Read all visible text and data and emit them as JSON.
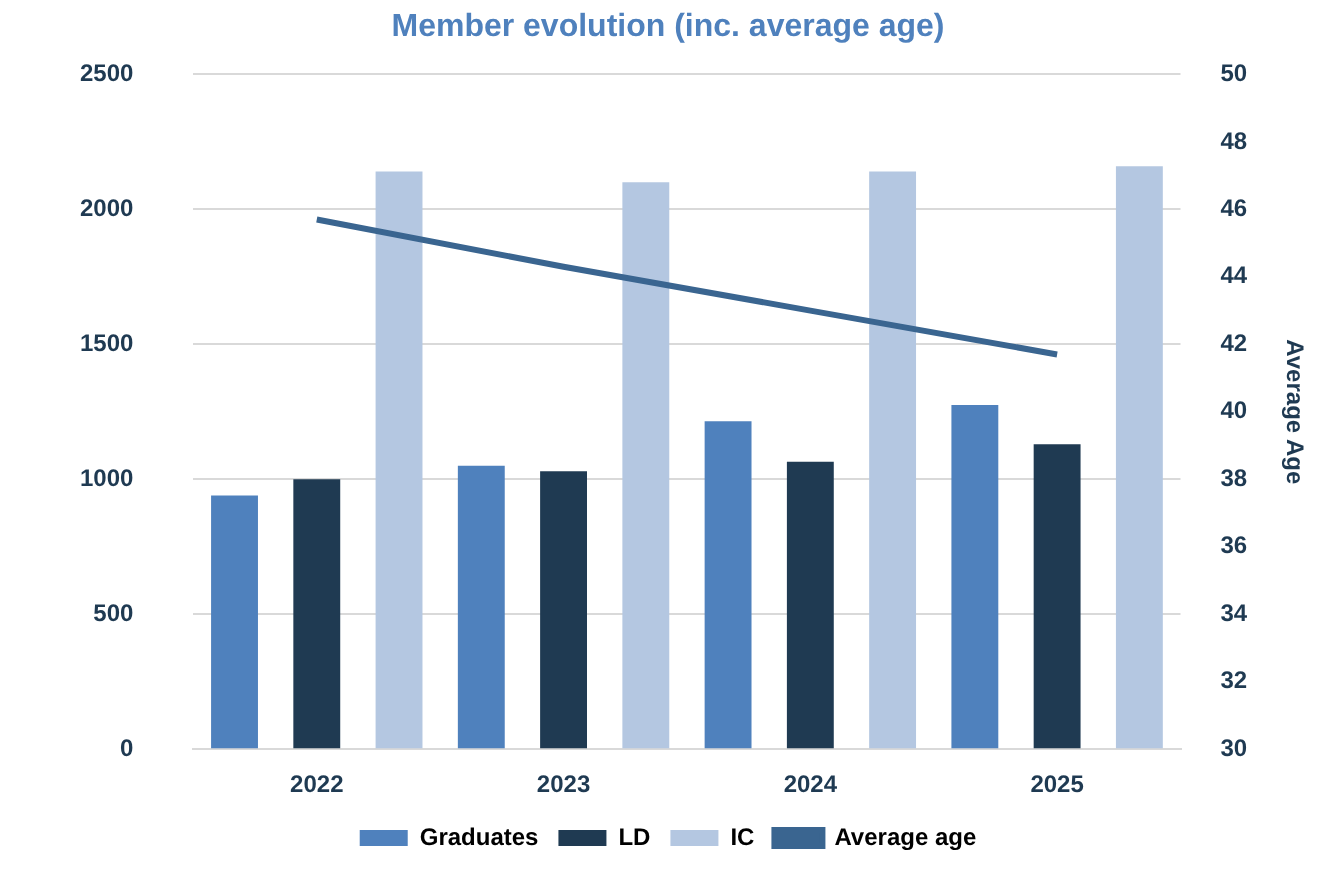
{
  "chart_data": {
    "type": "bar",
    "title": "Member evolution (inc. average age)",
    "y2label": "Average Age",
    "categories": [
      "2022",
      "2023",
      "2024",
      "2025"
    ],
    "series": [
      {
        "name": "Graduates",
        "color": "#4f81bd",
        "values": [
          940,
          1050,
          1215,
          1275
        ]
      },
      {
        "name": "LD",
        "color": "#1f3a52",
        "values": [
          1000,
          1030,
          1065,
          1130
        ]
      },
      {
        "name": "IC",
        "color": "#b4c7e1",
        "values": [
          2140,
          2100,
          2140,
          2160
        ]
      },
      {
        "name": "Average age",
        "type": "line",
        "axis": "y2",
        "color": "#3a6590",
        "values": [
          45.7,
          44.3,
          43.0,
          41.7
        ]
      }
    ],
    "ylim": [
      0,
      2500
    ],
    "yticks": [
      0,
      500,
      1000,
      1500,
      2000,
      2500
    ],
    "y2lim": [
      30,
      50
    ],
    "y2ticks": [
      30,
      32,
      34,
      36,
      38,
      40,
      42,
      44,
      46,
      48,
      50
    ],
    "grid": "y",
    "legend": "bottom",
    "marker": "none"
  }
}
